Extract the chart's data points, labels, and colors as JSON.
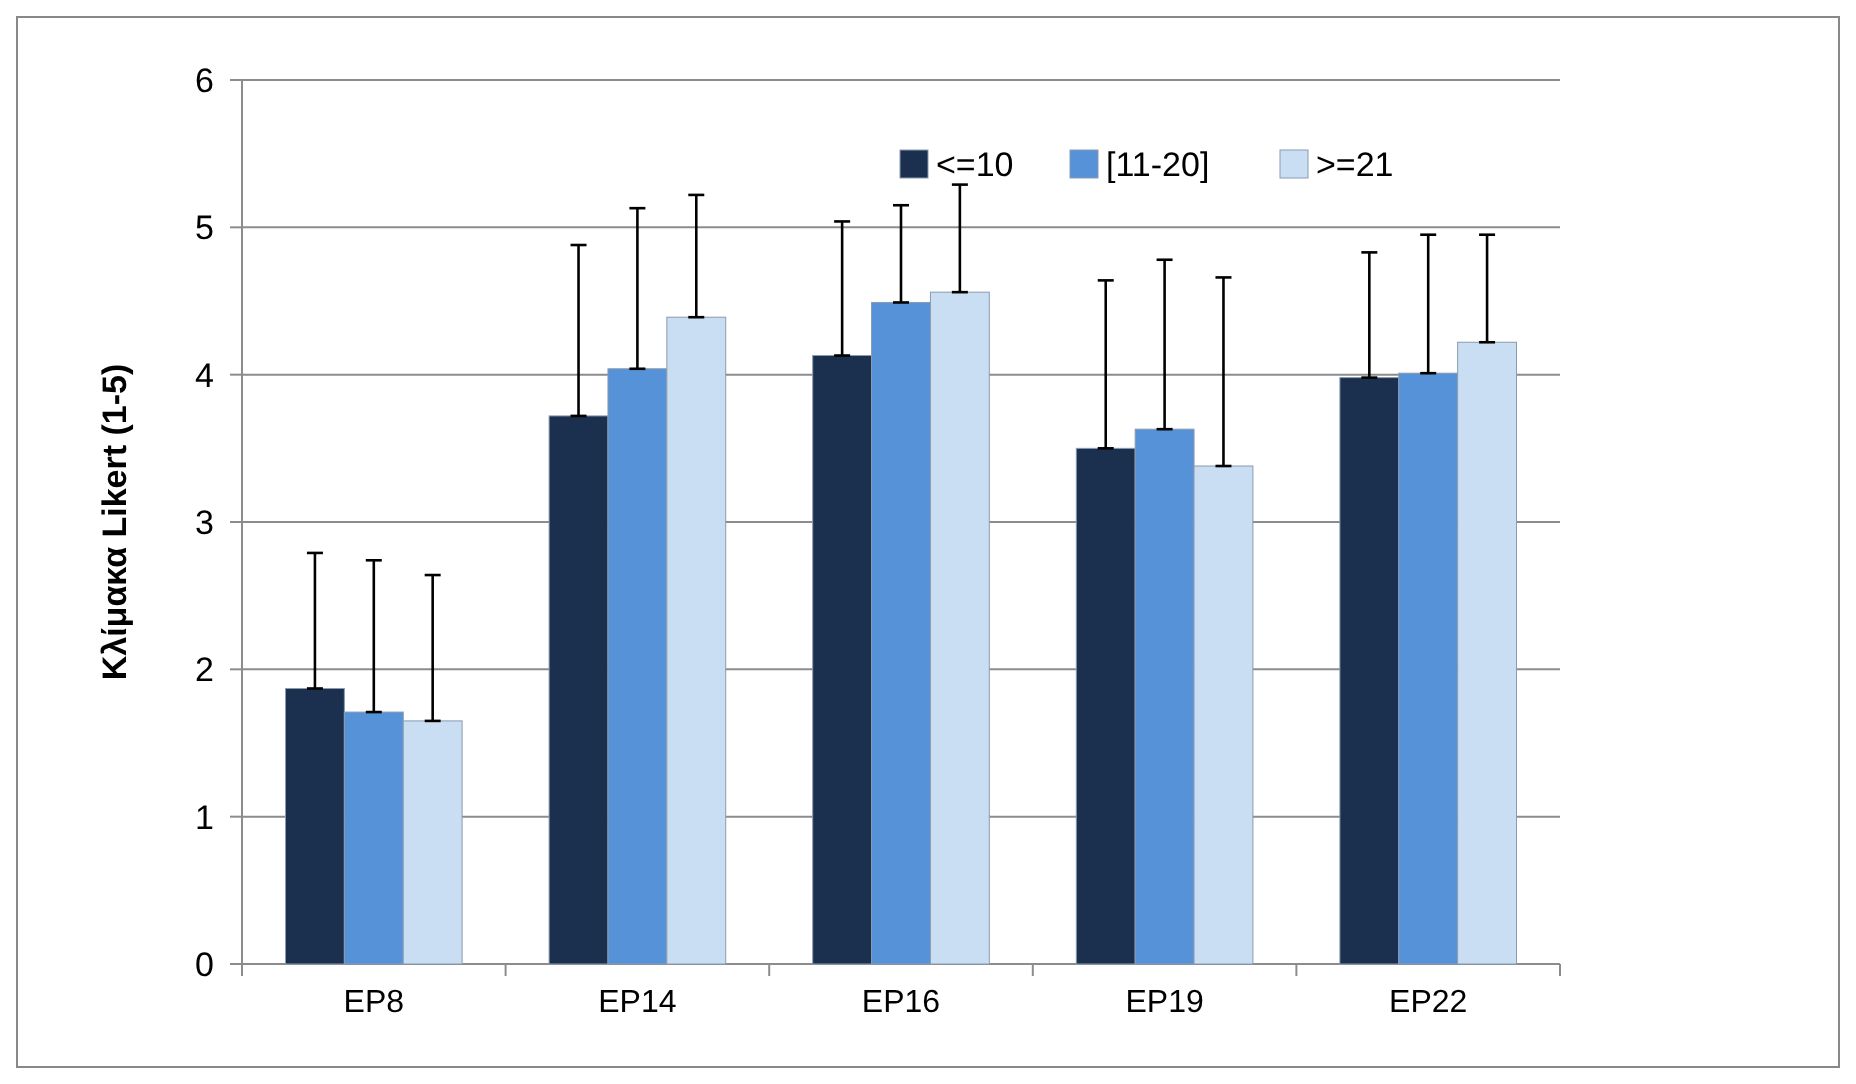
{
  "chart_data": {
    "type": "bar",
    "ylabel": "Κλίμακα Likert (1-5)",
    "categories": [
      "EP8",
      "EP14",
      "EP16",
      "EP19",
      "EP22"
    ],
    "ylim": [
      0,
      6
    ],
    "yticks": [
      0,
      1,
      2,
      3,
      4,
      5,
      6
    ],
    "grid": "y",
    "legend": "top right",
    "series": [
      {
        "name": "<=10",
        "color": "#1b2f4f",
        "values": [
          1.87,
          3.72,
          4.13,
          3.5,
          3.98
        ],
        "errors": [
          [
            1.87,
            2.79
          ],
          [
            3.72,
            4.88
          ],
          [
            4.13,
            5.04
          ],
          [
            3.5,
            4.64
          ],
          [
            3.98,
            4.83
          ]
        ]
      },
      {
        "name": "[11-20]",
        "color": "#5592d8",
        "values": [
          1.71,
          4.04,
          4.49,
          3.63,
          4.01
        ],
        "errors": [
          [
            1.71,
            2.74
          ],
          [
            4.04,
            5.13
          ],
          [
            4.49,
            5.15
          ],
          [
            3.63,
            4.78
          ],
          [
            4.01,
            4.95
          ]
        ]
      },
      {
        "name": ">=21",
        "color": "#c9ddf3",
        "values": [
          1.65,
          4.39,
          4.56,
          3.38,
          4.22
        ],
        "errors": [
          [
            1.65,
            2.64
          ],
          [
            4.39,
            5.22
          ],
          [
            4.56,
            5.29
          ],
          [
            3.38,
            4.66
          ],
          [
            4.22,
            4.95
          ]
        ]
      }
    ]
  }
}
